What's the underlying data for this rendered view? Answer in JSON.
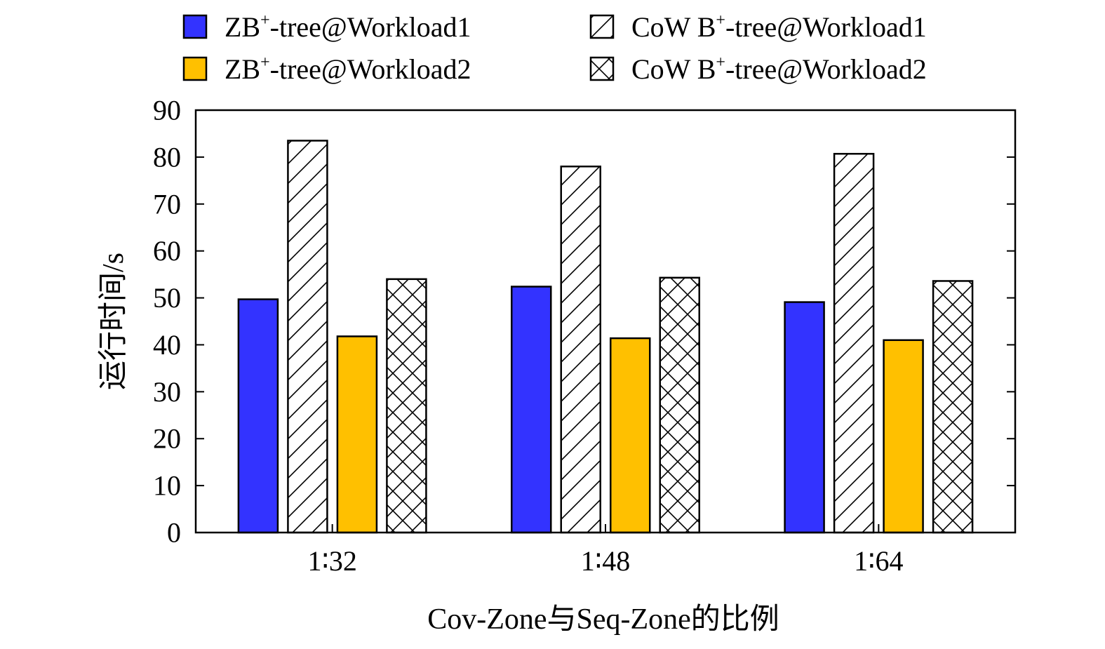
{
  "chart_data": {
    "type": "bar",
    "categories": [
      "1∶32",
      "1∶48",
      "1∶64"
    ],
    "series": [
      {
        "name": "ZB+-tree@Workload1",
        "name_parts": {
          "pre": "ZB",
          "sup": "+",
          "post": "-tree@Workload1"
        },
        "values": [
          49.7,
          52.4,
          49.1
        ],
        "fill": "#3333ff",
        "pattern": "solid"
      },
      {
        "name": "CoW B+-tree@Workload1",
        "name_parts": {
          "pre": "CoW B",
          "sup": "+",
          "post": "-tree@Workload1"
        },
        "values": [
          83.5,
          78.0,
          80.7
        ],
        "fill": "#ffffff",
        "pattern": "diagonal"
      },
      {
        "name": "ZB+-tree@Workload2",
        "name_parts": {
          "pre": "ZB",
          "sup": "+",
          "post": "-tree@Workload2"
        },
        "values": [
          41.8,
          41.4,
          41.0
        ],
        "fill": "#ffc000",
        "pattern": "solid"
      },
      {
        "name": "CoW B+-tree@Workload2",
        "name_parts": {
          "pre": "CoW B",
          "sup": "+",
          "post": "-tree@Workload2"
        },
        "values": [
          54.0,
          54.3,
          53.6
        ],
        "fill": "#ffffff",
        "pattern": "crosshatch"
      }
    ],
    "xlabel": "Cov-Zone与Seq-Zone的比例",
    "ylabel": "运行时间/s",
    "ylim": [
      0,
      90
    ],
    "yticks": [
      0,
      10,
      20,
      30,
      40,
      50,
      60,
      70,
      80,
      90
    ],
    "grid": false,
    "legend_position": "top"
  }
}
